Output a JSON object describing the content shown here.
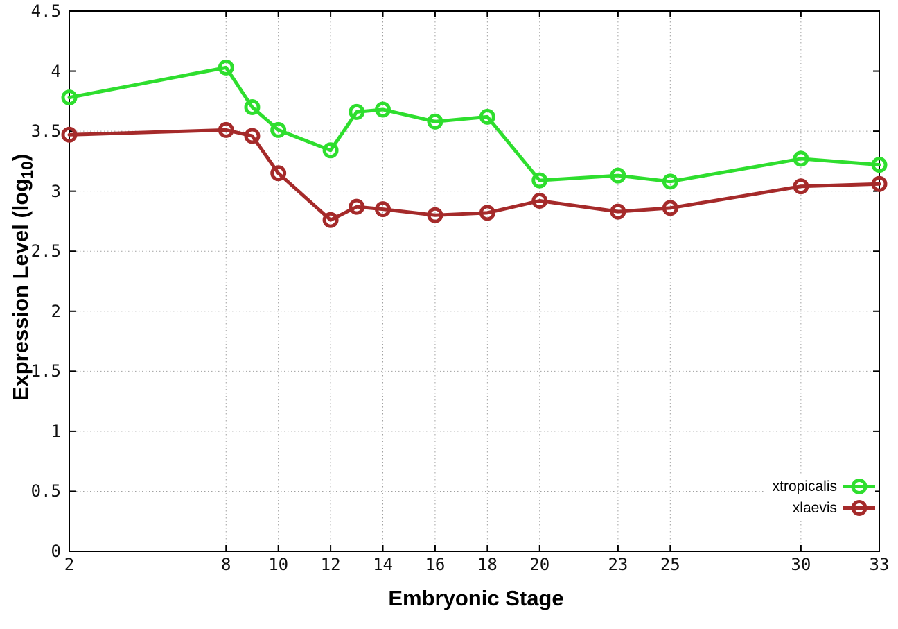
{
  "chart_data": {
    "type": "line",
    "title": "",
    "xlabel": "Embryonic Stage",
    "ylabel": "Expression Level (log10)",
    "ylabel_parts": {
      "prefix": "Expression Level (log",
      "subscript": "10",
      "suffix": ")"
    },
    "x": [
      2,
      8,
      9,
      10,
      12,
      13,
      14,
      16,
      18,
      20,
      23,
      25,
      30,
      33
    ],
    "series": [
      {
        "name": "xtropicalis",
        "color": "#2EDE2E",
        "marker": "open-circle",
        "values": [
          3.78,
          4.03,
          3.7,
          3.51,
          3.34,
          3.66,
          3.68,
          3.58,
          3.62,
          3.09,
          3.13,
          3.08,
          3.27,
          3.22
        ]
      },
      {
        "name": "xlaevis",
        "color": "#A52A2A",
        "marker": "open-circle",
        "values": [
          3.47,
          3.51,
          3.46,
          3.15,
          2.76,
          2.87,
          2.85,
          2.8,
          2.82,
          2.92,
          2.83,
          2.86,
          3.04,
          3.06
        ]
      }
    ],
    "xlim": [
      2,
      33
    ],
    "ylim": [
      0,
      4.5
    ],
    "xticks": {
      "values": [
        2,
        8,
        10,
        12,
        14,
        16,
        18,
        20,
        23,
        25,
        30,
        33
      ],
      "labels": [
        "2",
        "8",
        "10",
        "12",
        "14",
        "16",
        "18",
        "20",
        "23",
        "25",
        "30",
        "33"
      ]
    },
    "yticks": {
      "values": [
        0,
        0.5,
        1,
        1.5,
        2,
        2.5,
        3,
        3.5,
        4,
        4.5
      ],
      "labels": [
        "0",
        "0.5",
        "1",
        "1.5",
        "2",
        "2.5",
        "3",
        "3.5",
        "4",
        "4.5"
      ]
    },
    "grid": true,
    "legend_position": "inside-bottom-right"
  }
}
